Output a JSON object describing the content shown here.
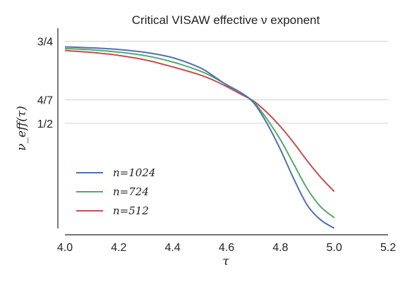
{
  "chart_data": {
    "type": "line",
    "title": "Critical VISAW effective ν exponent",
    "xlabel": "τ",
    "ylabel": "ν_eff(τ)",
    "xlim": [
      4.0,
      5.2
    ],
    "ylim": [
      0.16,
      0.79
    ],
    "x_ticks": [
      4.0,
      4.2,
      4.4,
      4.6,
      4.8,
      5.0,
      5.2
    ],
    "x_tick_labels": [
      "4.0",
      "4.2",
      "4.4",
      "4.6",
      "4.8",
      "5.0",
      "5.2"
    ],
    "y_ticks": [
      0.75,
      0.5714,
      0.5
    ],
    "y_tick_labels": [
      "3/4",
      "4/7",
      "1/2"
    ],
    "grid": "horizontal at y ticks",
    "legend_position": "lower-left",
    "series": [
      {
        "name": "n=1024",
        "color": "#4c72b0",
        "x": [
          4.0,
          4.1,
          4.2,
          4.3,
          4.4,
          4.5,
          4.55,
          4.6,
          4.65,
          4.7,
          4.75,
          4.8,
          4.85,
          4.9,
          4.95,
          5.0
        ],
        "y": [
          0.733,
          0.73,
          0.725,
          0.716,
          0.7,
          0.67,
          0.645,
          0.617,
          0.595,
          0.563,
          0.5,
          0.42,
          0.33,
          0.25,
          0.205,
          0.18
        ]
      },
      {
        "name": "n=724",
        "color": "#55a868",
        "x": [
          4.0,
          4.1,
          4.2,
          4.3,
          4.4,
          4.5,
          4.55,
          4.6,
          4.65,
          4.7,
          4.75,
          4.8,
          4.85,
          4.9,
          4.95,
          5.0
        ],
        "y": [
          0.728,
          0.724,
          0.717,
          0.706,
          0.687,
          0.66,
          0.641,
          0.618,
          0.595,
          0.565,
          0.513,
          0.45,
          0.375,
          0.3,
          0.245,
          0.212
        ]
      },
      {
        "name": "n=512",
        "color": "#c44e52",
        "x": [
          4.0,
          4.1,
          4.2,
          4.3,
          4.4,
          4.5,
          4.55,
          4.6,
          4.65,
          4.7,
          4.75,
          4.8,
          4.85,
          4.9,
          4.95,
          5.0
        ],
        "y": [
          0.722,
          0.716,
          0.707,
          0.693,
          0.672,
          0.648,
          0.632,
          0.612,
          0.59,
          0.568,
          0.533,
          0.49,
          0.44,
          0.385,
          0.335,
          0.292
        ]
      }
    ]
  }
}
